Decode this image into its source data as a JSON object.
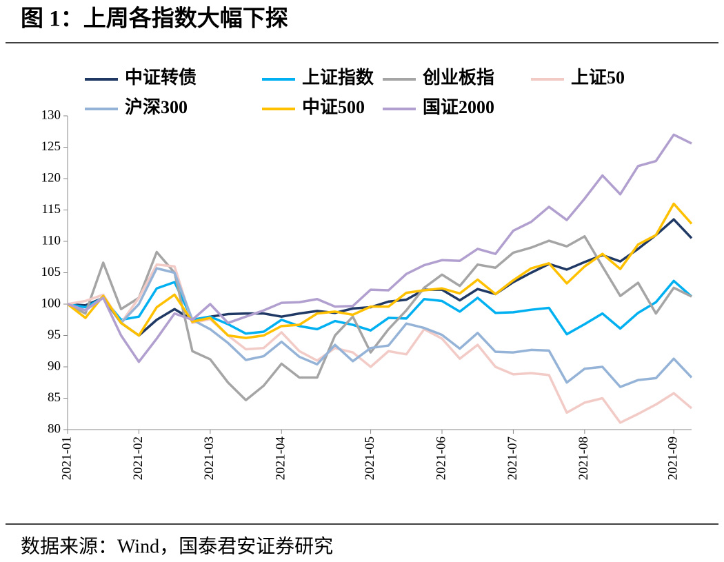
{
  "figure_title": "图 1：上周各指数大幅下探",
  "source": "数据来源：Wind，国泰君安证券研究",
  "chart_data": {
    "type": "line",
    "categories": [
      "2021-01",
      null,
      null,
      null,
      "2021-02",
      null,
      null,
      null,
      "2021-03",
      null,
      null,
      null,
      "2021-04",
      null,
      null,
      null,
      null,
      "2021-05",
      null,
      null,
      null,
      "2021-06",
      null,
      null,
      null,
      "2021-07",
      null,
      null,
      null,
      "2021-08",
      null,
      null,
      null,
      null,
      "2021-09",
      null
    ],
    "ylim": [
      80,
      130
    ],
    "yticks": [
      80,
      85,
      90,
      95,
      100,
      105,
      110,
      115,
      120,
      125,
      130
    ],
    "series": [
      {
        "name": "中证转债",
        "color": "#1f3864",
        "values": [
          100,
          99.8,
          101,
          97,
          95,
          97.5,
          99.2,
          97.5,
          98,
          98.4,
          98.5,
          98.5,
          98,
          98.5,
          98.9,
          98.6,
          99.3,
          99.5,
          100.4,
          100.7,
          102.3,
          102.3,
          100.6,
          102.4,
          101.6,
          103.5,
          105,
          106.4,
          105.5,
          106.7,
          107.8,
          106.8,
          108.8,
          111,
          113.5,
          110.5
        ]
      },
      {
        "name": "上证指数",
        "color": "#00b0f0",
        "values": [
          100,
          99.5,
          101,
          97.5,
          98,
          102.5,
          103.5,
          97.5,
          98,
          96.8,
          95.3,
          95.6,
          97.5,
          96.5,
          96,
          97.3,
          96.7,
          95.8,
          97.8,
          97.7,
          100.8,
          100.5,
          98.8,
          101,
          98.6,
          98.7,
          99.1,
          99.4,
          95.2,
          96.8,
          98.5,
          96.1,
          98.6,
          100.3,
          103.7,
          101.2
        ]
      },
      {
        "name": "创业板指",
        "color": "#a5a5a5",
        "values": [
          100,
          98.5,
          106.6,
          99.2,
          101,
          108.3,
          105,
          92.5,
          91.2,
          87.5,
          84.7,
          87,
          90.5,
          88.3,
          88.3,
          95,
          98,
          92.3,
          96,
          99,
          102.6,
          104.7,
          102.9,
          106.3,
          105.8,
          108.2,
          109,
          110.1,
          109.2,
          110.8,
          106,
          101.3,
          103.4,
          98.5,
          102.6,
          101.2
        ]
      },
      {
        "name": "上证50",
        "color": "#f2cbc7",
        "values": [
          100,
          100.5,
          101.5,
          97,
          101,
          106.3,
          106,
          97,
          97.6,
          95,
          92.8,
          93,
          95.5,
          92.5,
          91,
          93,
          92.3,
          90,
          92.5,
          92,
          96,
          94.5,
          91.3,
          93.5,
          90,
          88.8,
          89,
          88.7,
          82.7,
          84.3,
          85,
          81.1,
          82.5,
          84,
          85.8,
          83.4
        ]
      },
      {
        "name": "沪深300",
        "color": "#95b3d7",
        "values": [
          100,
          99,
          101.2,
          97,
          100,
          105.7,
          105,
          97.5,
          96,
          93.8,
          91.1,
          91.7,
          94,
          91.6,
          90.4,
          93.5,
          90.9,
          93,
          93.4,
          96.9,
          96.2,
          95.1,
          92.9,
          95.4,
          92.4,
          92.3,
          92.7,
          92.6,
          87.5,
          89.7,
          90,
          86.8,
          87.9,
          88.2,
          91.3,
          88.3
        ]
      },
      {
        "name": "中证500",
        "color": "#ffc000",
        "values": [
          100,
          97.8,
          101.3,
          97,
          95,
          99.5,
          101.5,
          97.2,
          97.8,
          95,
          94.6,
          95,
          96.5,
          96.7,
          98.5,
          98.8,
          98.3,
          99.6,
          99.6,
          101.8,
          102.2,
          102.5,
          101.7,
          103.9,
          101.6,
          103.8,
          105.7,
          106.5,
          103.3,
          106,
          108,
          105.6,
          109.5,
          111,
          116,
          112.8
        ]
      },
      {
        "name": "国证2000",
        "color": "#b1a0cf",
        "values": [
          100,
          99,
          101,
          95,
          90.8,
          94.5,
          98.5,
          97.5,
          100,
          97,
          98,
          99,
          100.2,
          100.3,
          100.8,
          99.6,
          99.7,
          102.3,
          102.2,
          104.8,
          106.2,
          107,
          106.9,
          108.8,
          108,
          111.7,
          113.1,
          115.5,
          113.4,
          116.8,
          120.5,
          117.5,
          122,
          122.8,
          127,
          125.6
        ]
      }
    ]
  }
}
